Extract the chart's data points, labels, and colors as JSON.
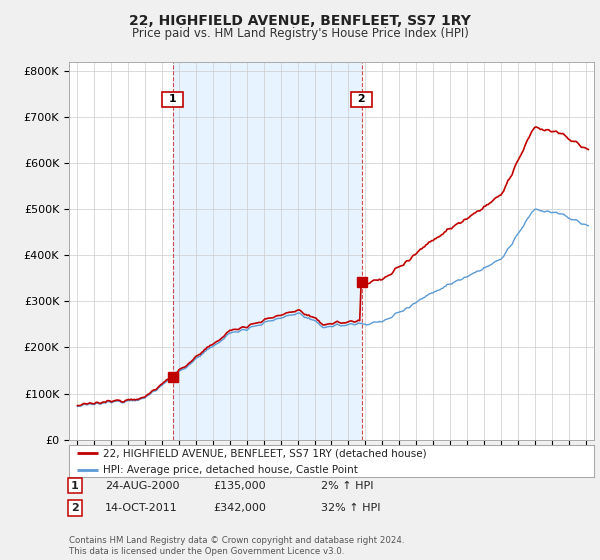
{
  "title": "22, HIGHFIELD AVENUE, BENFLEET, SS7 1RY",
  "subtitle": "Price paid vs. HM Land Registry's House Price Index (HPI)",
  "legend_line1": "22, HIGHFIELD AVENUE, BENFLEET, SS7 1RY (detached house)",
  "legend_line2": "HPI: Average price, detached house, Castle Point",
  "annotation1_date": "24-AUG-2000",
  "annotation1_price": "£135,000",
  "annotation1_hpi": "2% ↑ HPI",
  "annotation2_date": "14-OCT-2011",
  "annotation2_price": "£342,000",
  "annotation2_hpi": "32% ↑ HPI",
  "footer": "Contains HM Land Registry data © Crown copyright and database right 2024.\nThis data is licensed under the Open Government Licence v3.0.",
  "sale1_year": 2000.62,
  "sale1_value": 135000,
  "sale2_year": 2011.79,
  "sale2_value": 342000,
  "hpi_color": "#5b9bd5",
  "price_color": "#c00000",
  "shade_color": "#ddeeff",
  "ylim_min": 0,
  "ylim_max": 820000,
  "xlim_min": 1994.5,
  "xlim_max": 2025.5,
  "background_color": "#f0f0f0",
  "plot_bg_color": "#ffffff",
  "yticks": [
    0,
    100000,
    200000,
    300000,
    400000,
    500000,
    600000,
    700000,
    800000
  ],
  "ylabels": [
    "£0",
    "£100K",
    "£200K",
    "£300K",
    "£400K",
    "£500K",
    "£600K",
    "£700K",
    "£800K"
  ],
  "xticks": [
    1995,
    1996,
    1997,
    1998,
    1999,
    2000,
    2001,
    2002,
    2003,
    2004,
    2005,
    2006,
    2007,
    2008,
    2009,
    2010,
    2011,
    2012,
    2013,
    2014,
    2015,
    2016,
    2017,
    2018,
    2019,
    2020,
    2021,
    2022,
    2023,
    2024,
    2025
  ]
}
